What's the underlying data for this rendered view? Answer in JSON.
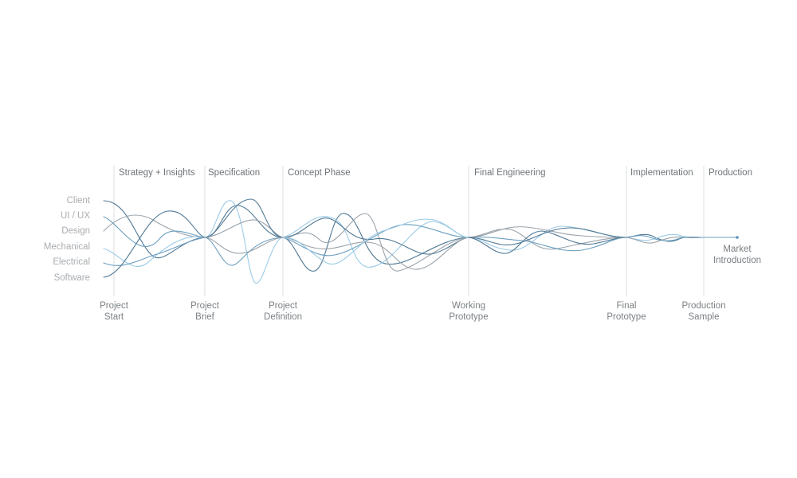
{
  "phases": [
    "Strategy + Insights",
    "Specification",
    "Concept Phase",
    "Final Engineering",
    "Implementation",
    "Production"
  ],
  "teams": [
    "Client",
    "UI / UX",
    "Design",
    "Mechanical",
    "Electrical",
    "Software"
  ],
  "milestones": [
    {
      "line1": "Project",
      "line2": "Start"
    },
    {
      "line1": "Project",
      "line2": "Brief"
    },
    {
      "line1": "Project",
      "line2": "Definition"
    },
    {
      "line1": "Working",
      "line2": "Prototype"
    },
    {
      "line1": "Final",
      "line2": "Prototype"
    },
    {
      "line1": "Production",
      "line2": "Sample"
    }
  ],
  "end_label": {
    "line1": "Market",
    "line2": "Introduction"
  },
  "colors": {
    "strand_light": "#9ccbe6",
    "strand_mid": "#6c9fc0",
    "strand_dark": "#4f7894",
    "strand_gray": "#9aa3aa",
    "end_dot": "#5b8fb3"
  }
}
